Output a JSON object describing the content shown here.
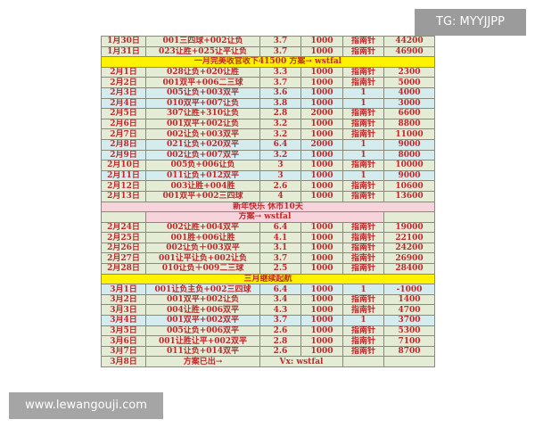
{
  "watermarks": {
    "top_right": "TG: MYYJJPP",
    "bottom_left": "www.lewangouji.com"
  },
  "colors": {
    "text": "#c0282b",
    "row_green": "#e4ecd6",
    "row_blue": "#d5ecef",
    "banner_yellow": "#fff200",
    "banner_pink": "#f7d3dc"
  },
  "sections": [
    {
      "rows": [
        [
          "1月30日",
          "001三四球+002让负",
          "3.7",
          "1000",
          "指南针",
          "44200"
        ],
        [
          "1月31日",
          "023让胜+025让平让负",
          "3.7",
          "1000",
          "指南针",
          "46900"
        ]
      ]
    },
    {
      "banner": "一月完美收官收下41500 方案→ wstfal",
      "banner_style": "y",
      "rows": [
        [
          "2月1日",
          "028让负+020让胜",
          "3.3",
          "1000",
          "指南针",
          "2300"
        ],
        [
          "2月2日",
          "001双平+006二三球",
          "3.7",
          "1000",
          "指南针",
          "5000"
        ],
        [
          "2月3日",
          "005让负+003双平",
          "3.6",
          "1000",
          "1",
          "4000"
        ],
        [
          "2月4日",
          "010双平+007让负",
          "3.8",
          "1000",
          "1",
          "3000"
        ],
        [
          "2月5日",
          "307让胜+310让负",
          "2.8",
          "2000",
          "指南针",
          "6600"
        ],
        [
          "2月6日",
          "001双平+002让负",
          "3.2",
          "1000",
          "指南针",
          "8800"
        ],
        [
          "2月7日",
          "002让负+003双平",
          "3.2",
          "1000",
          "指南针",
          "11000"
        ],
        [
          "2月8日",
          "021让负+020双平",
          "6.4",
          "2000",
          "1",
          "9000"
        ],
        [
          "2月9日",
          "002让负+007双平",
          "3.2",
          "1000",
          "1",
          "8000"
        ],
        [
          "2月10日",
          "005负+006让负",
          "3",
          "1000",
          "指南针",
          "10000"
        ],
        [
          "2月11日",
          "011让负+012双平",
          "3",
          "1000",
          "1",
          "9000"
        ],
        [
          "2月12日",
          "003让胜+004胜",
          "2.6",
          "1000",
          "指南针",
          "10600"
        ],
        [
          "2月13日",
          "001双平+002三四球",
          "4",
          "1000",
          "指南针",
          "13600"
        ]
      ]
    },
    {
      "banner": "新年快乐 休市10天",
      "banner_style": "p",
      "plan": "方案→ wstfal",
      "rows": [
        [
          "2月24日",
          "002让胜+004双平",
          "6.4",
          "1000",
          "指南针",
          "19000"
        ],
        [
          "2月25日",
          "001胜+006让胜",
          "4.1",
          "1000",
          "指南针",
          "22100"
        ],
        [
          "2月26日",
          "002让负＋003双平",
          "3.1",
          "1000",
          "指南针",
          "24200"
        ],
        [
          "2月27日",
          "001让平让负+002让负",
          "3.7",
          "1000",
          "指南针",
          "26900"
        ],
        [
          "2月28日",
          "010让负＋009二三球",
          "2.5",
          "1000",
          "指南针",
          "28400"
        ]
      ]
    },
    {
      "banner": "三月继续起航",
      "banner_style": "y",
      "rows": [
        [
          "3月1日",
          "001让负主负+002三四球",
          "6.4",
          "1000",
          "1",
          "-1000"
        ],
        [
          "3月2日",
          "001双平+002让负",
          "3.4",
          "1000",
          "指南针",
          "1400"
        ],
        [
          "3月3日",
          "004让胜+006双平",
          "4.3",
          "1000",
          "指南针",
          "4700"
        ],
        [
          "3月4日",
          "001双平+002双平",
          "3.7",
          "1000",
          "1",
          "3700"
        ],
        [
          "3月5日",
          "005让负+006双平",
          "2.6",
          "1000",
          "指南针",
          "5300"
        ],
        [
          "3月6日",
          "001让胜让平+002双平",
          "2.8",
          "1000",
          "指南针",
          "7100"
        ],
        [
          "3月7日",
          "011让负+014双平",
          "2.6",
          "1000",
          "指南针",
          "8700"
        ]
      ]
    }
  ],
  "last_row": {
    "date": "3月8日",
    "text": "方案已出→",
    "contact": "Vx: wstfal"
  }
}
